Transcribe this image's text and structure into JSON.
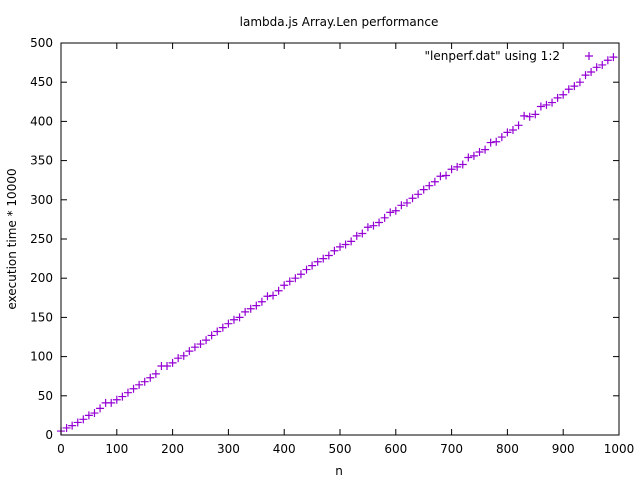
{
  "chart_data": {
    "type": "scatter",
    "title": "lambda.js Array.Len performance",
    "xlabel": "n",
    "ylabel": "execution time * 10000",
    "xlim": [
      0,
      1000
    ],
    "ylim": [
      0,
      500
    ],
    "xticks": [
      0,
      100,
      200,
      300,
      400,
      500,
      600,
      700,
      800,
      900,
      1000
    ],
    "yticks": [
      0,
      50,
      100,
      150,
      200,
      250,
      300,
      350,
      400,
      450,
      500
    ],
    "grid": false,
    "legend_position": "top-right",
    "series": [
      {
        "name": "\"lenperf.dat\" using 1:2",
        "color": "#9400d3",
        "marker": "plus",
        "x": [
          0,
          10,
          20,
          30,
          40,
          50,
          60,
          70,
          80,
          90,
          100,
          110,
          120,
          130,
          140,
          150,
          160,
          170,
          180,
          190,
          200,
          210,
          220,
          230,
          240,
          250,
          260,
          270,
          280,
          290,
          300,
          310,
          320,
          330,
          340,
          350,
          360,
          370,
          380,
          390,
          400,
          410,
          420,
          430,
          440,
          450,
          460,
          470,
          480,
          490,
          500,
          510,
          520,
          530,
          540,
          550,
          560,
          570,
          580,
          590,
          600,
          610,
          620,
          630,
          640,
          650,
          660,
          670,
          680,
          690,
          700,
          710,
          720,
          730,
          740,
          750,
          760,
          770,
          780,
          790,
          800,
          810,
          820,
          830,
          840,
          850,
          860,
          870,
          880,
          890,
          900,
          910,
          920,
          930,
          940,
          950,
          960,
          970,
          980,
          990
        ],
        "values": [
          5,
          9,
          12,
          16,
          20,
          25,
          28,
          34,
          41,
          41,
          45,
          49,
          54,
          59,
          64,
          68,
          73,
          78,
          88,
          88,
          92,
          98,
          101,
          107,
          112,
          116,
          121,
          127,
          132,
          137,
          142,
          147,
          150,
          157,
          161,
          165,
          170,
          177,
          178,
          184,
          191,
          196,
          200,
          205,
          211,
          216,
          221,
          225,
          229,
          235,
          240,
          243,
          247,
          254,
          257,
          265,
          267,
          271,
          277,
          284,
          286,
          293,
          296,
          302,
          307,
          313,
          318,
          323,
          330,
          331,
          339,
          342,
          345,
          354,
          356,
          361,
          364,
          373,
          374,
          380,
          386,
          389,
          395,
          407,
          406,
          409,
          419,
          421,
          424,
          430,
          434,
          441,
          445,
          450,
          459,
          463,
          469,
          472,
          478,
          482
        ]
      }
    ]
  }
}
